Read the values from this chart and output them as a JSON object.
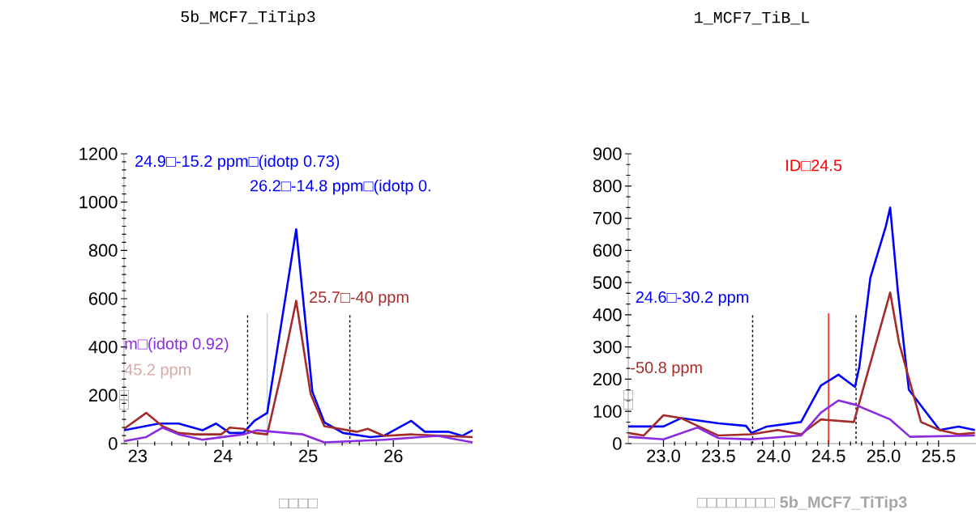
{
  "chart_data": [
    {
      "type": "line",
      "title": "5b_MCF7_TiTip3",
      "xlabel": "□□□□",
      "ylabel": "□□",
      "xlim": [
        22.84,
        26.93
      ],
      "ylim": [
        0,
        1200
      ],
      "xticks": [
        23,
        24,
        25,
        26
      ],
      "yticks": [
        0,
        200,
        400,
        600,
        800,
        1000,
        1200
      ],
      "series": [
        {
          "color": "#0000ff",
          "x": [
            22.84,
            23.25,
            23.48,
            23.76,
            23.92,
            24.08,
            24.24,
            24.37,
            24.52,
            24.86,
            25.05,
            25.19,
            25.41,
            25.73,
            25.89,
            26.21,
            26.37,
            26.65,
            26.81,
            26.93
          ],
          "values": [
            55,
            83,
            83,
            55,
            83,
            44,
            44,
            94,
            127,
            887,
            215,
            88,
            44,
            27,
            32,
            94,
            49,
            49,
            32,
            55
          ]
        },
        {
          "color": "#a52a2a",
          "x": [
            22.84,
            23.1,
            23.29,
            23.48,
            23.67,
            23.98,
            24.08,
            24.24,
            24.37,
            24.52,
            24.68,
            24.86,
            25.03,
            25.19,
            25.57,
            25.7,
            25.89,
            26.21,
            26.93
          ],
          "values": [
            61,
            127,
            72,
            44,
            38,
            38,
            66,
            61,
            44,
            38,
            284,
            591,
            205,
            72,
            49,
            61,
            32,
            38,
            27
          ]
        },
        {
          "color": "#8a2be2",
          "x": [
            22.84,
            23.1,
            23.29,
            23.48,
            23.76,
            24.24,
            24.4,
            24.94,
            25.19,
            25.89,
            26.52,
            26.93
          ],
          "values": [
            10,
            27,
            66,
            38,
            16,
            38,
            55,
            38,
            5,
            16,
            32,
            5
          ]
        }
      ],
      "ref_lines": [
        {
          "axis": "x",
          "value": 24.29,
          "color": "#000000",
          "line_style": "dashed"
        },
        {
          "axis": "x",
          "value": 25.49,
          "color": "#000000",
          "line_style": "dashed"
        },
        {
          "axis": "x",
          "value": 24.52,
          "color": "#add8e6",
          "line_style": "solid"
        }
      ],
      "annotations": [
        "24.9□-15.2 ppm□(idotp 0.73)",
        "m□(idotp 0.92)",
        "45.2 ppm",
        "26.2□-14.8 ppm□(idotp 0.",
        "25.7□-40 ppm"
      ]
    },
    {
      "type": "line",
      "title": "1_MCF7_TiB_L",
      "xlabel": "□□□□□□□□ **5b_MCF7_TiTip3**",
      "ylabel": "□□",
      "xlim": [
        22.68,
        25.84
      ],
      "ylim": [
        0,
        900
      ],
      "xticks": [
        {
          "value": 23,
          "label": "23.0"
        },
        {
          "value": 23.5,
          "label": "23.5"
        },
        {
          "value": 24,
          "label": "24.0"
        },
        {
          "value": 24.5,
          "label": "24.5"
        },
        {
          "value": 25,
          "label": "25.0"
        },
        {
          "value": 25.5,
          "label": "25.5"
        }
      ],
      "yticks": [
        0,
        100,
        200,
        300,
        400,
        500,
        600,
        700,
        800,
        900
      ],
      "series": [
        {
          "color": "#0000ff",
          "x": [
            22.68,
            23.0,
            23.16,
            23.5,
            23.75,
            23.8,
            23.94,
            24.25,
            24.43,
            24.59,
            24.74,
            24.78,
            24.88,
            25.02,
            25.06,
            25.13,
            25.23,
            25.51,
            25.68,
            25.83
          ],
          "values": [
            53,
            53,
            79,
            63,
            55,
            33,
            53,
            67,
            180,
            214,
            176,
            239,
            515,
            674,
            733,
            473,
            167,
            42,
            53,
            42
          ]
        },
        {
          "color": "#a52a2a",
          "x": [
            22.68,
            22.82,
            23.0,
            23.16,
            23.5,
            23.8,
            24.04,
            24.25,
            24.43,
            24.73,
            25.06,
            25.14,
            25.34,
            25.51,
            25.68,
            25.83
          ],
          "values": [
            33,
            25,
            88,
            79,
            25,
            29,
            42,
            29,
            75,
            67,
            469,
            314,
            67,
            42,
            29,
            33
          ]
        },
        {
          "color": "#8a2be2",
          "x": [
            22.68,
            23.0,
            23.31,
            23.5,
            23.8,
            24.25,
            24.43,
            24.59,
            24.74,
            25.06,
            25.24,
            25.83
          ],
          "values": [
            21,
            13,
            50,
            17,
            13,
            25,
            96,
            134,
            121,
            75,
            21,
            25
          ]
        }
      ],
      "ref_lines": [
        {
          "axis": "x",
          "value": 23.81,
          "color": "#000000",
          "line_style": "dashed"
        },
        {
          "axis": "x",
          "value": 24.75,
          "color": "#000000",
          "line_style": "dashed"
        },
        {
          "axis": "x",
          "value": 24.5,
          "color": "#ff0000",
          "line_style": "solid"
        }
      ],
      "annotations": [
        "ID□24.5",
        "24.6□-30.2 ppm",
        "-50.8 ppm"
      ]
    }
  ]
}
